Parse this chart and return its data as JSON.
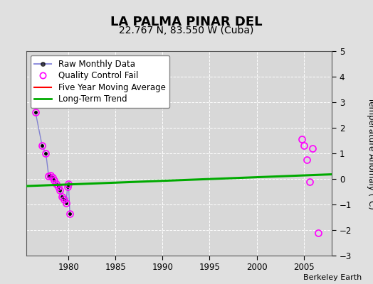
{
  "title": "LA PALMA PINAR DEL",
  "subtitle": "22.767 N, 83.550 W (Cuba)",
  "ylabel": "Temperature Anomaly (°C)",
  "credit": "Berkeley Earth",
  "ylim": [
    -3,
    5
  ],
  "xlim": [
    1975.5,
    2008
  ],
  "xticks": [
    1980,
    1985,
    1990,
    1995,
    2000,
    2005
  ],
  "yticks": [
    -3,
    -2,
    -1,
    0,
    1,
    2,
    3,
    4,
    5
  ],
  "bg_color": "#e0e0e0",
  "plot_bg_color": "#d8d8d8",
  "raw_data": {
    "x": [
      1976.5,
      1977.2,
      1977.6,
      1977.9,
      1978.1,
      1978.3,
      1978.5,
      1978.7,
      1978.9,
      1979.1,
      1979.3,
      1979.5,
      1979.75,
      1979.9,
      1980.0,
      1980.15
    ],
    "y": [
      2.6,
      1.3,
      1.0,
      0.1,
      0.15,
      0.05,
      -0.05,
      -0.2,
      -0.3,
      -0.45,
      -0.7,
      -0.8,
      -0.95,
      -0.3,
      -0.2,
      -1.35
    ]
  },
  "qc_fail_data": {
    "x": [
      1976.5,
      1977.2,
      1977.6,
      1977.9,
      1978.1,
      1978.3,
      1978.5,
      1978.7,
      1978.9,
      1979.1,
      1979.3,
      1979.5,
      1979.75,
      1979.9,
      1980.0,
      1980.15,
      2004.8,
      2005.0,
      2005.3,
      2005.6,
      2005.9,
      2006.5
    ],
    "y": [
      2.6,
      1.3,
      1.0,
      0.1,
      0.15,
      0.05,
      -0.05,
      -0.2,
      -0.3,
      -0.45,
      -0.7,
      -0.8,
      -0.95,
      -0.3,
      -0.2,
      -1.35,
      1.55,
      1.3,
      0.75,
      -0.1,
      1.2,
      -2.1
    ]
  },
  "long_term_trend": {
    "x": [
      1975.5,
      2008
    ],
    "y": [
      -0.28,
      0.18
    ]
  },
  "line_color": "#5555cc",
  "line_alpha": 0.65,
  "marker_color": "black",
  "qc_color": "magenta",
  "five_year_color": "red",
  "trend_color": "#00aa00",
  "trend_linewidth": 2.2,
  "raw_linewidth": 1.0,
  "title_fontsize": 13,
  "subtitle_fontsize": 10,
  "legend_fontsize": 8.5,
  "tick_fontsize": 8.5
}
